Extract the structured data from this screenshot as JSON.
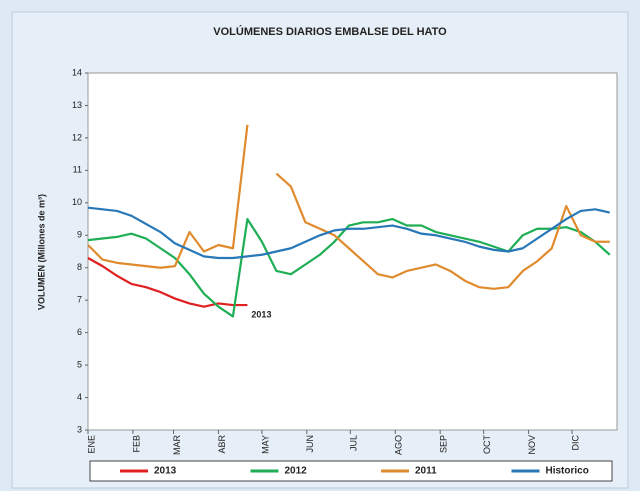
{
  "chart_data": {
    "type": "line",
    "title": "VOLÚMENES DIARIOS EMBALSE DEL HATO",
    "y_label": "VOLUMEN (Millones de m³)",
    "annotation": "2013",
    "x": [
      0,
      10,
      20,
      30,
      40,
      50,
      60,
      70,
      80,
      90,
      100,
      110,
      120,
      130,
      140,
      150,
      160,
      170,
      180,
      190,
      200,
      210,
      220,
      230,
      240,
      250,
      260,
      270,
      280,
      290,
      300,
      310,
      320,
      330,
      340,
      350,
      360
    ],
    "xlim": [
      0,
      365
    ],
    "xticks": [
      {
        "value": 0,
        "label": "ENE"
      },
      {
        "value": 31,
        "label": "FEB"
      },
      {
        "value": 59,
        "label": "MAR"
      },
      {
        "value": 90,
        "label": "ABR"
      },
      {
        "value": 120,
        "label": "MAY"
      },
      {
        "value": 151,
        "label": "JUN"
      },
      {
        "value": 181,
        "label": "JUL"
      },
      {
        "value": 212,
        "label": "AGO"
      },
      {
        "value": 243,
        "label": "SEP"
      },
      {
        "value": 273,
        "label": "OCT"
      },
      {
        "value": 304,
        "label": "NOV"
      },
      {
        "value": 334,
        "label": "DIC"
      }
    ],
    "ylim": [
      3,
      14
    ],
    "yticks": [
      3,
      4,
      5,
      6,
      7,
      8,
      9,
      10,
      11,
      12,
      13,
      14
    ],
    "grid": false,
    "legend": "bottom",
    "series": [
      {
        "name": "2013",
        "color": "#e02020",
        "values": [
          8.3,
          8.05,
          7.75,
          7.5,
          7.4,
          7.25,
          7.05,
          6.9,
          6.8,
          6.9,
          6.85,
          6.85,
          null,
          null,
          null,
          null,
          null,
          null,
          null,
          null,
          null,
          null,
          null,
          null,
          null,
          null,
          null,
          null,
          null,
          null,
          null,
          null,
          null,
          null,
          null,
          null,
          null
        ]
      },
      {
        "name": "2012",
        "color": "#1fae55",
        "values": [
          8.85,
          8.9,
          8.95,
          9.05,
          8.9,
          8.6,
          8.3,
          7.8,
          7.2,
          6.8,
          6.5,
          9.5,
          8.8,
          7.9,
          7.8,
          8.1,
          8.4,
          8.8,
          9.3,
          9.4,
          9.4,
          9.5,
          9.3,
          9.3,
          9.1,
          9.0,
          8.9,
          8.8,
          8.65,
          8.5,
          9.0,
          9.2,
          9.2,
          9.25,
          9.1,
          8.8,
          8.4
        ]
      },
      {
        "name": "2011",
        "color": "#e08a2e",
        "values": [
          8.7,
          8.25,
          8.15,
          8.1,
          8.05,
          8.0,
          8.05,
          9.1,
          8.5,
          8.7,
          8.6,
          12.4,
          null,
          10.9,
          10.5,
          9.4,
          9.2,
          9.0,
          8.6,
          8.2,
          7.8,
          7.7,
          7.9,
          8.0,
          8.1,
          7.9,
          7.6,
          7.4,
          7.35,
          7.4,
          7.9,
          8.2,
          8.6,
          9.9,
          9.0,
          8.8,
          8.8
        ]
      },
      {
        "name": "Historico",
        "color": "#2878b8",
        "values": [
          9.85,
          9.8,
          9.75,
          9.6,
          9.35,
          9.1,
          8.75,
          8.55,
          8.35,
          8.3,
          8.3,
          8.35,
          8.4,
          8.5,
          8.6,
          8.8,
          9.0,
          9.15,
          9.2,
          9.2,
          9.25,
          9.3,
          9.2,
          9.05,
          9.0,
          8.9,
          8.8,
          8.65,
          8.55,
          8.5,
          8.6,
          8.9,
          9.2,
          9.5,
          9.75,
          9.8,
          9.7
        ]
      }
    ]
  }
}
